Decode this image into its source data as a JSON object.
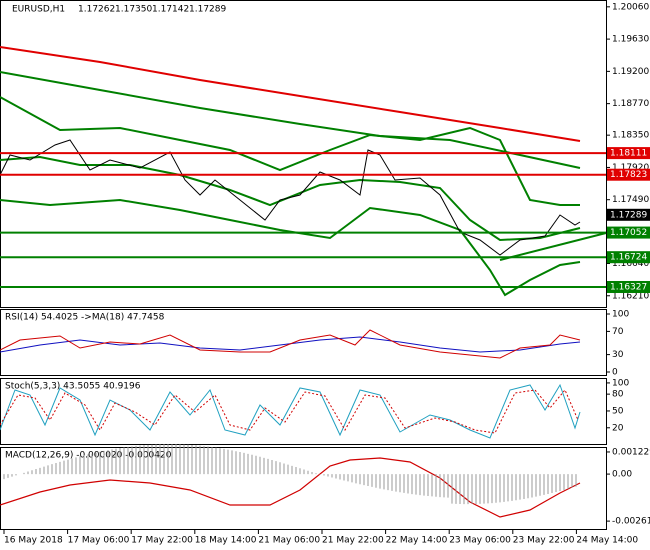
{
  "header": {
    "symbol": "EURUSD,H1",
    "ohlc": [
      "1.17262",
      "1.17350",
      "1.17142",
      "1.17289"
    ]
  },
  "main": {
    "ylim": [
      1.16047,
      1.20151
    ],
    "yticks": [
      {
        "value": 1.2006,
        "label": "1.20060"
      },
      {
        "value": 1.1963,
        "label": "1.19630"
      },
      {
        "value": 1.192,
        "label": "1.19200"
      },
      {
        "value": 1.1877,
        "label": "1.18770"
      },
      {
        "value": 1.1835,
        "label": "1.18350"
      },
      {
        "value": 1.1792,
        "label": "1.17920"
      },
      {
        "value": 1.1749,
        "label": "1.17490"
      },
      {
        "value": 1.1664,
        "label": "1.16640"
      },
      {
        "value": 1.1621,
        "label": "1.16210"
      }
    ],
    "levels": [
      {
        "value": 1.18111,
        "label": "1.18111",
        "color": "#e00000"
      },
      {
        "value": 1.17823,
        "label": "1.17823",
        "color": "#e00000"
      },
      {
        "value": 1.17289,
        "label": "1.17289",
        "color": "#000000"
      },
      {
        "value": 1.17052,
        "label": "1.17052",
        "color": "#008000"
      },
      {
        "value": 1.16724,
        "label": "1.16724",
        "color": "#008000"
      },
      {
        "value": 1.16327,
        "label": "1.16327",
        "color": "#008000"
      }
    ]
  },
  "indicators": [
    {
      "title": "RSI(14) 54.4025 ->MA(18) 47.7458",
      "ylim": [
        -6.9,
        106.9
      ],
      "yticks": [
        100,
        70,
        30,
        0
      ]
    },
    {
      "title": "Stoch(5,3,3) 43.5055 40.9196",
      "ylim": [
        -10.7,
        107
      ],
      "yticks": [
        100,
        80,
        50,
        20
      ]
    },
    {
      "title": "MACD(12,26,9) -0.000020 -0.000420",
      "ylim": [
        -0.003106,
        0.001449
      ],
      "yticks": [
        0.001229,
        {
          "value": 0,
          "label": "0.00"
        },
        -0.002612
      ]
    }
  ],
  "time_axis": [
    "16 May 2018",
    "17 May 06:00",
    "17 May 22:00",
    "18 May 14:00",
    "21 May 06:00",
    "21 May 22:00",
    "22 May 14:00",
    "23 May 06:00",
    "23 May 22:00",
    "24 May 14:00"
  ]
}
